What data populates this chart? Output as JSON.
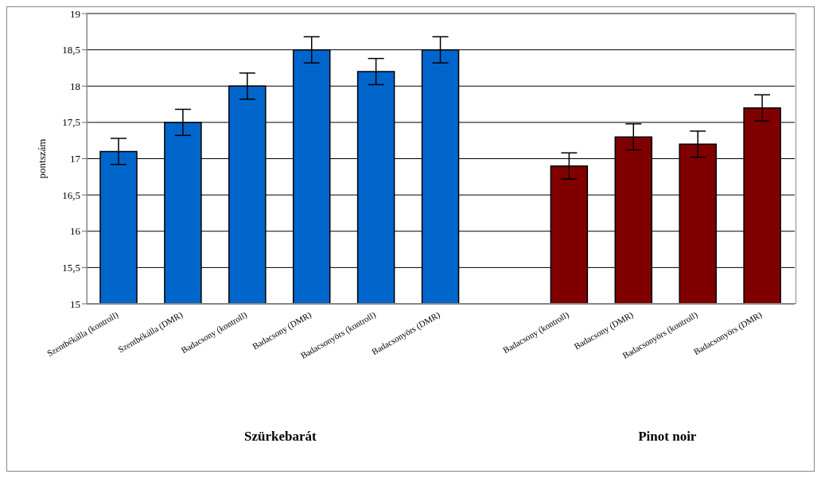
{
  "chart_data": {
    "type": "bar",
    "ylabel": "pontszám",
    "categories": [
      "Szentbékálla (kontroll)",
      "Szentbékálla (DMR)",
      "Badacsony (kontroll)",
      "Badacsony (DMR)",
      "Badacsonyörs (kontroll)",
      "Badacsonyörs (DMR)",
      null,
      "Badacsony (kontroll)",
      "Badacsony (DMR)",
      "Badacsonyörs (kontroll)",
      "Badacsonyörs (DMR)"
    ],
    "values": [
      17.1,
      17.5,
      18.0,
      18.5,
      18.2,
      18.5,
      null,
      16.9,
      17.3,
      17.2,
      17.7
    ],
    "errors": [
      0.18,
      0.18,
      0.18,
      0.18,
      0.18,
      0.18,
      null,
      0.18,
      0.18,
      0.18,
      0.18
    ],
    "colors": [
      "#0066cc",
      "#0066cc",
      "#0066cc",
      "#0066cc",
      "#0066cc",
      "#0066cc",
      "#0066cc",
      "#800000",
      "#800000",
      "#800000",
      "#800000"
    ],
    "ylim": [
      15,
      19
    ],
    "yticks": [
      15,
      {
        "value": 15.5,
        "label": "15,5"
      },
      16,
      {
        "value": 16.5,
        "label": "16,5"
      },
      17,
      {
        "value": 17.5,
        "label": "17,5"
      },
      18,
      {
        "value": 18.5,
        "label": "18,5"
      },
      19
    ],
    "grid": "y",
    "annotations": [
      "Szürkebarát",
      "Pinot noir"
    ]
  }
}
